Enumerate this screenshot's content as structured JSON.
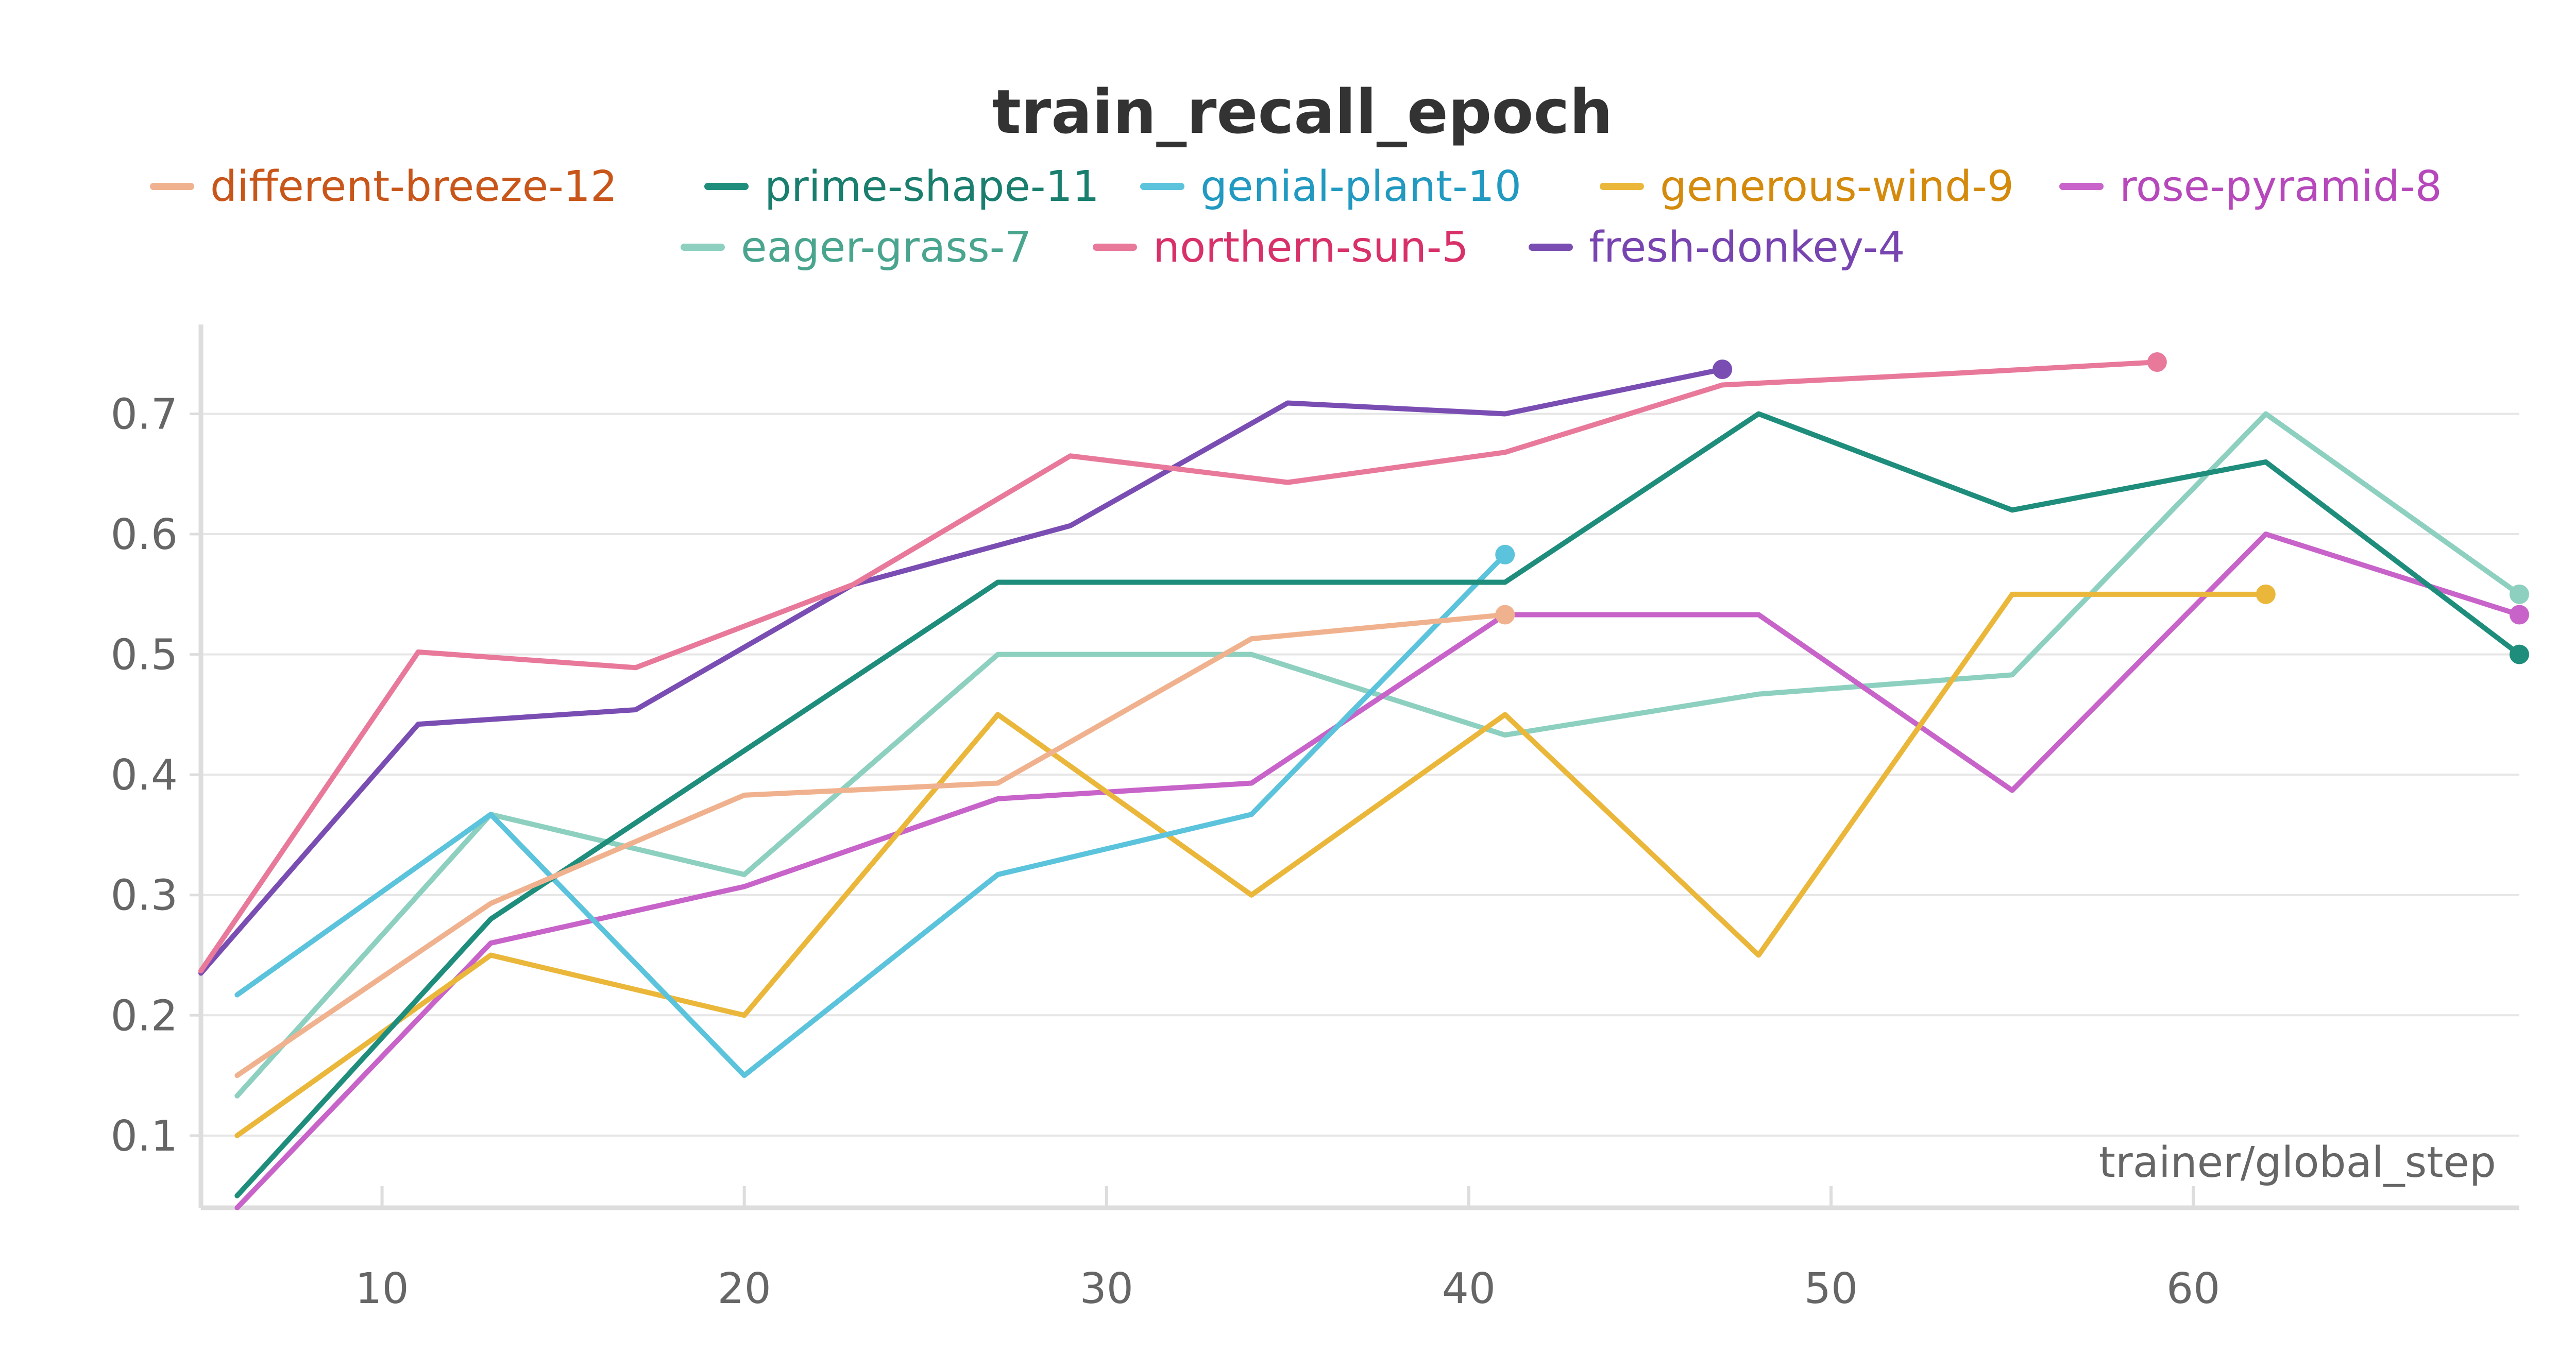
{
  "chart_data": {
    "type": "line",
    "title": "train_recall_epoch",
    "xlabel": "trainer/global_step",
    "ylabel": "",
    "xlim": [
      5,
      69
    ],
    "ylim": [
      0.04,
      0.77
    ],
    "x_ticks": [
      10,
      20,
      30,
      40,
      50,
      60
    ],
    "y_ticks": [
      0.1,
      0.2,
      0.3,
      0.4,
      0.5,
      0.6,
      0.7
    ],
    "x_tick_labels": [
      "10",
      "20",
      "30",
      "40",
      "50",
      "60"
    ],
    "y_tick_labels": [
      "0.1",
      "0.2",
      "0.3",
      "0.4",
      "0.5",
      "0.6",
      "0.7"
    ],
    "grid": true,
    "legend_position": "top",
    "series": [
      {
        "name": "different-breeze-12",
        "color": "#f0b28e",
        "text_color": "#c8561a",
        "points": [
          [
            6,
            0.15
          ],
          [
            13,
            0.293
          ],
          [
            20,
            0.383
          ],
          [
            27,
            0.393
          ],
          [
            34,
            0.513
          ],
          [
            41,
            0.533
          ]
        ]
      },
      {
        "name": "prime-shape-11",
        "color": "#1f8d7c",
        "text_color": "#1a7e6e",
        "points": [
          [
            6,
            0.05
          ],
          [
            13,
            0.28
          ],
          [
            20,
            0.42
          ],
          [
            27,
            0.56
          ],
          [
            34,
            0.56
          ],
          [
            41,
            0.56
          ],
          [
            48,
            0.7
          ],
          [
            55,
            0.62
          ],
          [
            62,
            0.66
          ],
          [
            69,
            0.5
          ]
        ]
      },
      {
        "name": "genial-plant-10",
        "color": "#5bc3dc",
        "text_color": "#2199c0",
        "points": [
          [
            6,
            0.217
          ],
          [
            13,
            0.367
          ],
          [
            20,
            0.15
          ],
          [
            27,
            0.317
          ],
          [
            34,
            0.367
          ],
          [
            41,
            0.583
          ]
        ]
      },
      {
        "name": "generous-wind-9",
        "color": "#eab73a",
        "text_color": "#d48a0c",
        "points": [
          [
            6,
            0.1
          ],
          [
            13,
            0.25
          ],
          [
            20,
            0.2
          ],
          [
            27,
            0.45
          ],
          [
            34,
            0.3
          ],
          [
            41,
            0.45
          ],
          [
            48,
            0.25
          ],
          [
            55,
            0.55
          ],
          [
            62,
            0.55
          ]
        ]
      },
      {
        "name": "rose-pyramid-8",
        "color": "#c763c9",
        "text_color": "#b648bb",
        "points": [
          [
            6,
            0.04
          ],
          [
            13,
            0.26
          ],
          [
            20,
            0.307
          ],
          [
            27,
            0.38
          ],
          [
            34,
            0.393
          ],
          [
            41,
            0.533
          ],
          [
            48,
            0.533
          ],
          [
            55,
            0.387
          ],
          [
            62,
            0.6
          ],
          [
            69,
            0.533
          ]
        ]
      },
      {
        "name": "eager-grass-7",
        "color": "#8dd0bf",
        "text_color": "#4aa58f",
        "points": [
          [
            6,
            0.133
          ],
          [
            13,
            0.367
          ],
          [
            20,
            0.317
          ],
          [
            27,
            0.5
          ],
          [
            34,
            0.5
          ],
          [
            41,
            0.433
          ],
          [
            48,
            0.467
          ],
          [
            55,
            0.483
          ],
          [
            62,
            0.7
          ],
          [
            69,
            0.55
          ]
        ]
      },
      {
        "name": "northern-sun-5",
        "color": "#e8799b",
        "text_color": "#d8316a",
        "points": [
          [
            5,
            0.237
          ],
          [
            11,
            0.502
          ],
          [
            17,
            0.489
          ],
          [
            23,
            0.558
          ],
          [
            29,
            0.665
          ],
          [
            35,
            0.643
          ],
          [
            41,
            0.668
          ],
          [
            47,
            0.724
          ],
          [
            53,
            0.733
          ],
          [
            59,
            0.743
          ]
        ]
      },
      {
        "name": "fresh-donkey-4",
        "color": "#7a4db3",
        "text_color": "#7744b0",
        "points": [
          [
            5,
            0.235
          ],
          [
            11,
            0.442
          ],
          [
            17,
            0.454
          ],
          [
            23,
            0.558
          ],
          [
            29,
            0.607
          ],
          [
            35,
            0.709
          ],
          [
            41,
            0.7
          ],
          [
            47,
            0.737
          ]
        ]
      }
    ]
  }
}
